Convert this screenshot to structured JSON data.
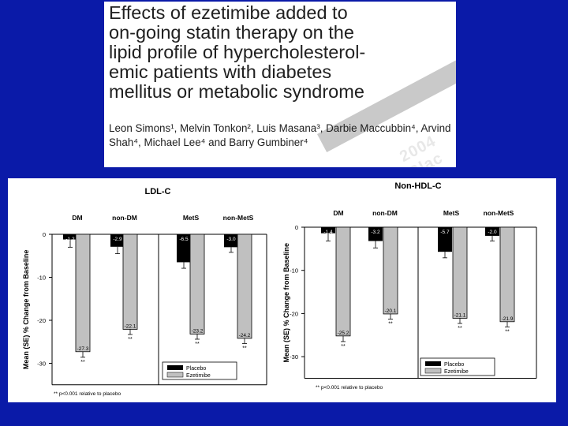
{
  "header": {
    "title_lines": [
      "Effects of ezetimibe added to",
      "on-going statin therapy on the",
      "lipid profile of hypercholesterol-",
      "emic patients with diabetes",
      "mellitus or metabolic syndrome"
    ],
    "authors": "Leon Simons¹, Melvin Tonkon², Luis Masana³, Darbie Maccubbin⁴, Arvind Shah⁴, Michael Lee⁴ and Barry Gumbiner⁴",
    "watermark": "2004 Blac"
  },
  "colors": {
    "background": "#0a1aa8",
    "placebo": "#000000",
    "ezetimibe": "#c0c0c0"
  },
  "chart_data": [
    {
      "type": "bar",
      "title": "LDL-C",
      "ylabel": "Mean (SE) % Change from Baseline",
      "ylim": [
        -35,
        0
      ],
      "yticks": [
        0,
        -10,
        -20,
        -30
      ],
      "categories": [
        "DM",
        "non-DM",
        "MetS",
        "non-MetS"
      ],
      "series": [
        {
          "name": "Placebo",
          "values": [
            -1.2,
            -2.9,
            -6.5,
            -3.0
          ],
          "labels": [
            "-1.2",
            "-2.9",
            "-6.5",
            "-3.0"
          ]
        },
        {
          "name": "Ezetimibe",
          "values": [
            -27.3,
            -22.1,
            -23.2,
            -24.2
          ],
          "labels": [
            "-27.3",
            "-22.1",
            "-23.2",
            "-24.2"
          ],
          "significance": "**"
        }
      ],
      "legend_position": "bottom-right",
      "footnote": "** p<0.001 relative to placebo"
    },
    {
      "type": "bar",
      "title": "Non-HDL-C",
      "ylabel": "Mean (SE) % Change from Baseline",
      "ylim": [
        -35,
        0
      ],
      "yticks": [
        0,
        -10,
        -20,
        -30
      ],
      "categories": [
        "DM",
        "non-DM",
        "MetS",
        "non-MetS"
      ],
      "series": [
        {
          "name": "Placebo",
          "values": [
            -1.4,
            -3.2,
            -5.7,
            -2.0
          ],
          "labels": [
            "-1.4",
            "-3.2",
            "-5.7",
            "-2.0"
          ]
        },
        {
          "name": "Ezetimibe",
          "values": [
            -25.2,
            -20.1,
            -21.1,
            -21.9
          ],
          "labels": [
            "-25.2",
            "-20.1",
            "-21.1",
            "-21.9"
          ],
          "significance": "**"
        }
      ],
      "legend_position": "bottom-right",
      "footnote": "** p<0.001 relative to placebo"
    }
  ]
}
